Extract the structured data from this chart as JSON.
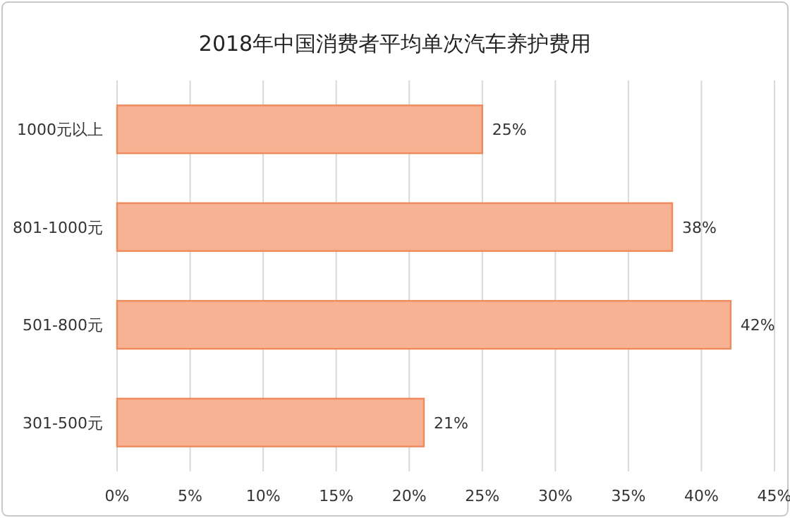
{
  "chart_data": {
    "type": "bar",
    "orientation": "horizontal",
    "title": "2018年中国消费者平均单次汽车养护费用",
    "categories": [
      "1000元以上",
      "801-1000元",
      "501-800元",
      "301-500元"
    ],
    "values": [
      25,
      38,
      42,
      21
    ],
    "value_labels": [
      "25%",
      "38%",
      "42%",
      "21%"
    ],
    "color": "#f7b293",
    "xlim": [
      0,
      45
    ],
    "xticks": [
      {
        "value": 0,
        "label": "0%"
      },
      {
        "value": 5,
        "label": "5%"
      },
      {
        "value": 10,
        "label": "10%"
      },
      {
        "value": 15,
        "label": "15%"
      },
      {
        "value": 20,
        "label": "20%"
      },
      {
        "value": 25,
        "label": "25%"
      },
      {
        "value": 30,
        "label": "30%"
      },
      {
        "value": 35,
        "label": "35%"
      },
      {
        "value": 40,
        "label": "40%"
      },
      {
        "value": 45,
        "label": "45%"
      }
    ],
    "grid": "x"
  }
}
